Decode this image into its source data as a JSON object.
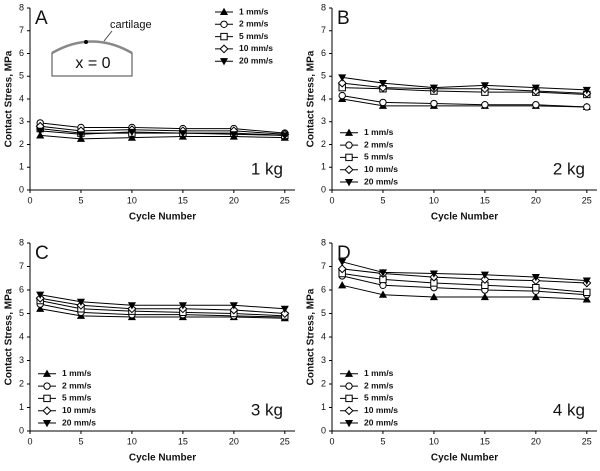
{
  "chart_data": [
    {
      "type": "line",
      "panel_label": "A",
      "annotation": "1 kg",
      "inset_labels": [
        "cartilage",
        "x = 0"
      ],
      "xlabel": "Cycle Number",
      "ylabel": "Contact Stress, MPa",
      "legend": "upper right",
      "x": [
        1,
        5,
        10,
        15,
        20,
        25
      ],
      "xlim": [
        0,
        26
      ],
      "xticks": [
        0,
        5,
        10,
        15,
        20,
        25
      ],
      "ylim": [
        0,
        8
      ],
      "yticks": [
        0,
        1,
        2,
        3,
        4,
        5,
        6,
        7,
        8
      ],
      "series": [
        {
          "name": "1 mm/s",
          "color": "#000000",
          "marker": "triangle-up",
          "values": [
            2.4,
            2.25,
            2.3,
            2.35,
            2.35,
            2.3
          ]
        },
        {
          "name": "2 mm/s",
          "color": "#000000",
          "marker": "circle",
          "values": [
            2.95,
            2.75,
            2.75,
            2.7,
            2.7,
            2.5
          ]
        },
        {
          "name": "5 mm/s",
          "color": "#000000",
          "marker": "square",
          "values": [
            2.7,
            2.5,
            2.5,
            2.5,
            2.5,
            2.4
          ]
        },
        {
          "name": "10 mm/s",
          "color": "#000000",
          "marker": "diamond",
          "values": [
            2.8,
            2.6,
            2.65,
            2.6,
            2.6,
            2.45
          ]
        },
        {
          "name": "20 mm/s",
          "color": "#000000",
          "marker": "triangle-down",
          "values": [
            2.6,
            2.45,
            2.55,
            2.5,
            2.45,
            2.4
          ]
        }
      ]
    },
    {
      "type": "line",
      "panel_label": "B",
      "annotation": "2 kg",
      "xlabel": "Cycle Number",
      "ylabel": "Contact Stress, MPa",
      "legend": "lower left",
      "x": [
        1,
        5,
        10,
        15,
        20,
        25
      ],
      "xlim": [
        0,
        26
      ],
      "xticks": [
        0,
        5,
        10,
        15,
        20,
        25
      ],
      "ylim": [
        0,
        8
      ],
      "yticks": [
        0,
        1,
        2,
        3,
        4,
        5,
        6,
        7,
        8
      ],
      "series": [
        {
          "name": "1 mm/s",
          "color": "#000000",
          "marker": "triangle-up",
          "values": [
            4.0,
            3.7,
            3.7,
            3.7,
            3.7,
            3.65
          ]
        },
        {
          "name": "2 mm/s",
          "color": "#000000",
          "marker": "circle",
          "values": [
            4.15,
            3.85,
            3.8,
            3.75,
            3.75,
            3.65
          ]
        },
        {
          "name": "5 mm/s",
          "color": "#000000",
          "marker": "square",
          "values": [
            4.5,
            4.45,
            4.35,
            4.3,
            4.3,
            4.2
          ]
        },
        {
          "name": "10 mm/s",
          "color": "#000000",
          "marker": "diamond",
          "values": [
            4.7,
            4.5,
            4.45,
            4.45,
            4.35,
            4.25
          ]
        },
        {
          "name": "20 mm/s",
          "color": "#000000",
          "marker": "triangle-down",
          "values": [
            4.95,
            4.7,
            4.5,
            4.6,
            4.5,
            4.4
          ]
        }
      ]
    },
    {
      "type": "line",
      "panel_label": "C",
      "annotation": "3 kg",
      "xlabel": "Cycle Number",
      "ylabel": "Contact Stress, MPa",
      "legend": "lower left",
      "x": [
        1,
        5,
        10,
        15,
        20,
        25
      ],
      "xlim": [
        0,
        26
      ],
      "xticks": [
        0,
        5,
        10,
        15,
        20,
        25
      ],
      "ylim": [
        0,
        8
      ],
      "yticks": [
        0,
        1,
        2,
        3,
        4,
        5,
        6,
        7,
        8
      ],
      "series": [
        {
          "name": "1 mm/s",
          "color": "#000000",
          "marker": "triangle-up",
          "values": [
            5.2,
            4.9,
            4.85,
            4.85,
            4.85,
            4.8
          ]
        },
        {
          "name": "2 mm/s",
          "color": "#000000",
          "marker": "circle",
          "values": [
            5.4,
            5.05,
            4.95,
            4.95,
            4.9,
            4.85
          ]
        },
        {
          "name": "5 mm/s",
          "color": "#000000",
          "marker": "square",
          "values": [
            5.55,
            5.2,
            5.1,
            5.05,
            5.0,
            4.9
          ]
        },
        {
          "name": "10 mm/s",
          "color": "#000000",
          "marker": "diamond",
          "values": [
            5.65,
            5.35,
            5.2,
            5.2,
            5.15,
            5.0
          ]
        },
        {
          "name": "20 mm/s",
          "color": "#000000",
          "marker": "triangle-down",
          "values": [
            5.8,
            5.5,
            5.35,
            5.35,
            5.35,
            5.2
          ]
        }
      ]
    },
    {
      "type": "line",
      "panel_label": "D",
      "annotation": "4 kg",
      "xlabel": "Cycle Number",
      "ylabel": "Contact Stress, MPa",
      "legend": "lower left",
      "x": [
        1,
        5,
        10,
        15,
        20,
        25
      ],
      "xlim": [
        0,
        26
      ],
      "xticks": [
        0,
        5,
        10,
        15,
        20,
        25
      ],
      "ylim": [
        0,
        8
      ],
      "yticks": [
        0,
        1,
        2,
        3,
        4,
        5,
        6,
        7,
        8
      ],
      "series": [
        {
          "name": "1 mm/s",
          "color": "#000000",
          "marker": "triangle-up",
          "values": [
            6.2,
            5.8,
            5.7,
            5.7,
            5.7,
            5.6
          ]
        },
        {
          "name": "2 mm/s",
          "color": "#000000",
          "marker": "circle",
          "values": [
            6.6,
            6.2,
            6.1,
            6.0,
            5.95,
            5.8
          ]
        },
        {
          "name": "5 mm/s",
          "color": "#000000",
          "marker": "square",
          "values": [
            6.7,
            6.45,
            6.3,
            6.2,
            6.1,
            5.9
          ]
        },
        {
          "name": "10 mm/s",
          "color": "#000000",
          "marker": "diamond",
          "values": [
            6.9,
            6.7,
            6.55,
            6.45,
            6.4,
            6.3
          ]
        },
        {
          "name": "20 mm/s",
          "color": "#000000",
          "marker": "triangle-down",
          "values": [
            7.2,
            6.75,
            6.7,
            6.65,
            6.55,
            6.4
          ]
        }
      ]
    }
  ]
}
